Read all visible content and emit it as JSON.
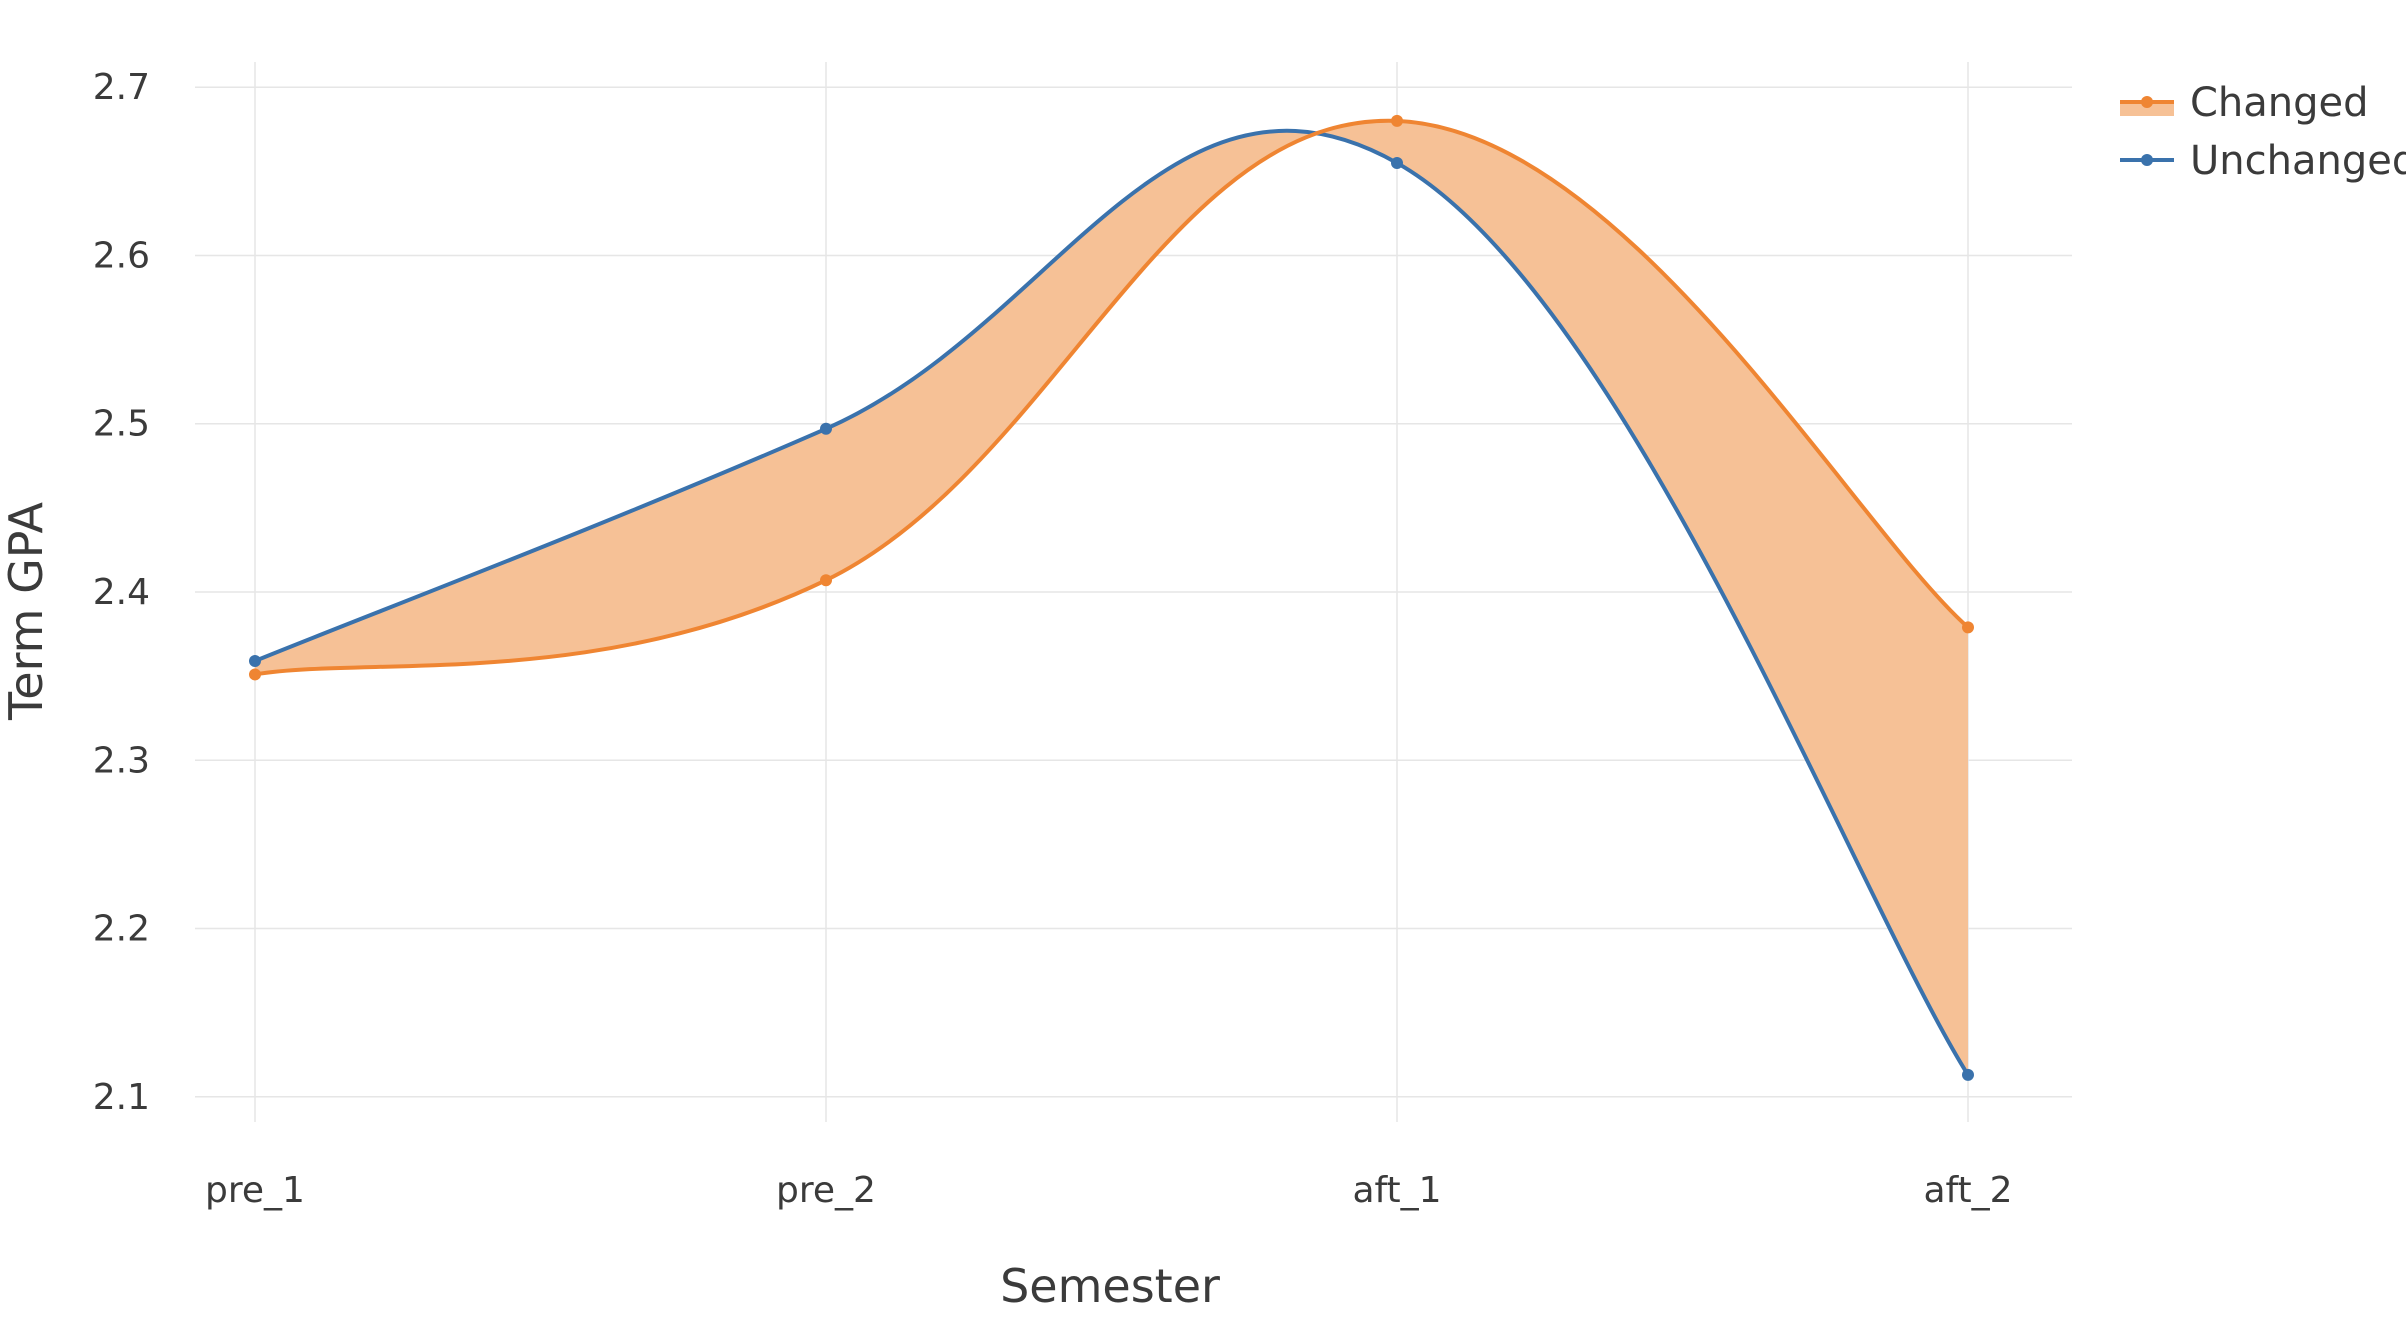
{
  "chart_data": {
    "type": "line",
    "xlabel": "Semester",
    "ylabel": "Term GPA",
    "categories": [
      "pre_1",
      "pre_2",
      "aft_1",
      "aft_2"
    ],
    "ylim": [
      2.085,
      2.715
    ],
    "yticks": [
      2.1,
      2.2,
      2.3,
      2.4,
      2.5,
      2.6,
      2.7
    ],
    "ytick_labels": [
      "2.1",
      "2.2",
      "2.3",
      "2.4",
      "2.5",
      "2.6",
      "2.7"
    ],
    "grid": true,
    "legend_position": "top-right",
    "fill_between": true,
    "fill_color": "#f6c196",
    "series": [
      {
        "name": "Changed",
        "color": "#ef8532",
        "values": [
          2.351,
          2.407,
          2.68,
          2.379
        ]
      },
      {
        "name": "Unchanged",
        "color": "#3a72ac",
        "values": [
          2.359,
          2.497,
          2.655,
          2.113
        ]
      }
    ]
  }
}
